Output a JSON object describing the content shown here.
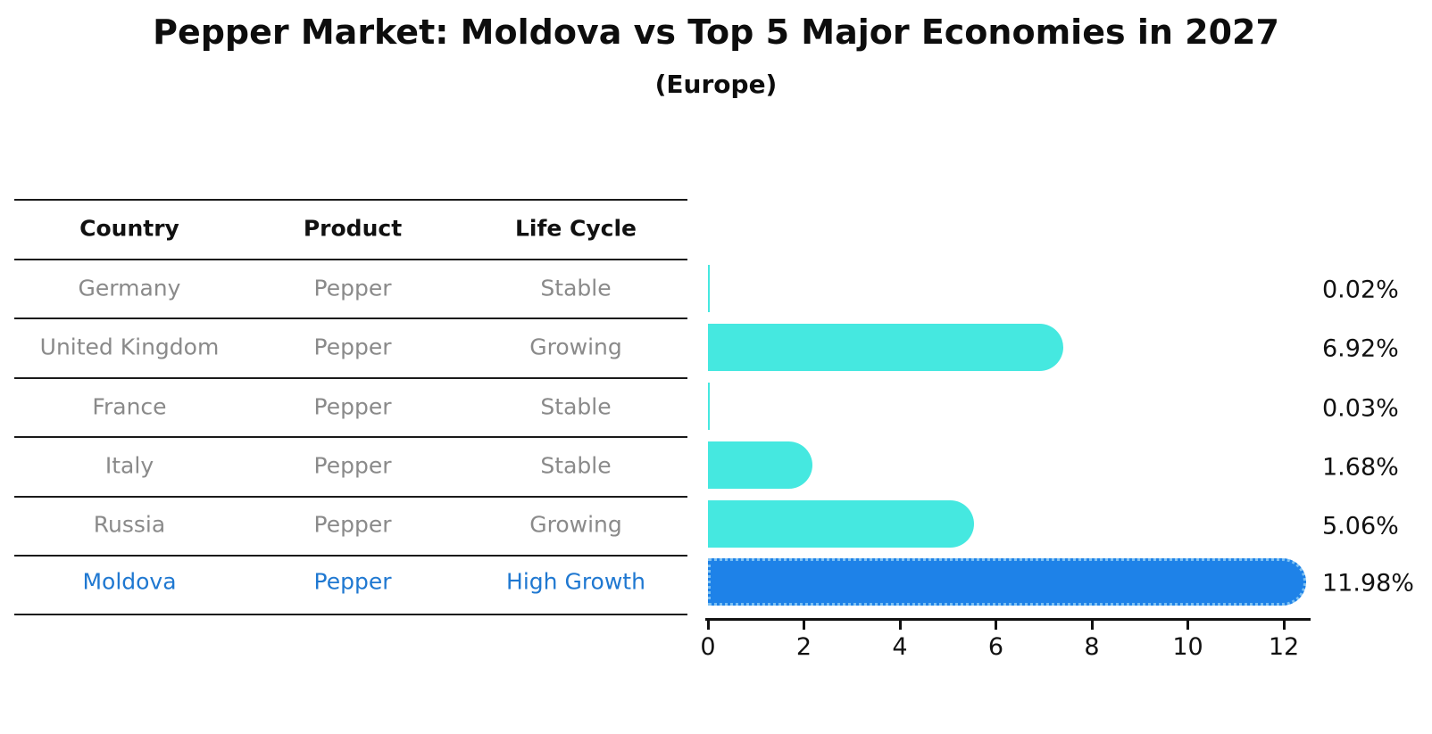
{
  "title": "Pepper Market: Moldova vs Top 5 Major Economies in 2027",
  "subtitle": "(Europe)",
  "table": {
    "headers": [
      "Country",
      "Product",
      "Life Cycle"
    ],
    "rows": [
      {
        "country": "Germany",
        "product": "Pepper",
        "life_cycle": "Stable",
        "highlight": false
      },
      {
        "country": "United Kingdom",
        "product": "Pepper",
        "life_cycle": "Growing",
        "highlight": false
      },
      {
        "country": "France",
        "product": "Pepper",
        "life_cycle": "Stable",
        "highlight": false
      },
      {
        "country": "Italy",
        "product": "Pepper",
        "life_cycle": "Stable",
        "highlight": false
      },
      {
        "country": "Russia",
        "product": "Pepper",
        "life_cycle": "Growing",
        "highlight": false
      },
      {
        "country": "Moldova",
        "product": "Pepper",
        "life_cycle": "High Growth",
        "highlight": true
      }
    ]
  },
  "chart_data": {
    "type": "bar",
    "orientation": "horizontal",
    "title": "Pepper Market: Moldova vs Top 5 Major Economies in 2027",
    "subtitle": "(Europe)",
    "categories": [
      "Germany",
      "United Kingdom",
      "France",
      "Italy",
      "Russia",
      "Moldova"
    ],
    "values": [
      0.02,
      6.92,
      0.03,
      1.68,
      5.06,
      11.98
    ],
    "value_labels": [
      "0.02%",
      "6.92%",
      "0.03%",
      "1.68%",
      "5.06%",
      "11.98%"
    ],
    "x_ticks": [
      0,
      2,
      4,
      6,
      8,
      10,
      12
    ],
    "xlim": [
      0,
      12.55
    ],
    "xlabel": "",
    "ylabel": "",
    "grid": false,
    "legend": false,
    "bar_color": "#45e8e0",
    "highlight_color": "#1e82e8",
    "highlight_border_color": "#7cc0f2",
    "highlight_index": 5,
    "highlight_text_color": "#1f78d1",
    "row_text_color": "#8a8a8a"
  }
}
